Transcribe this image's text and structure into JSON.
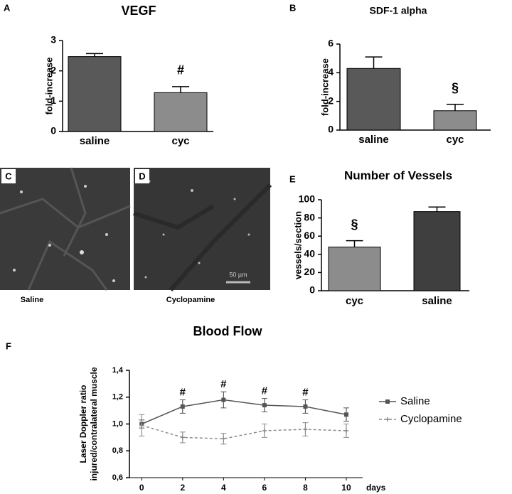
{
  "chart_data": [
    {
      "type": "bar",
      "panel": "A",
      "title": "VEGF",
      "ylabel": "fold-increase",
      "categories": [
        "saline",
        "cyc"
      ],
      "values": [
        2.47,
        1.28
      ],
      "errors": [
        0.1,
        0.2
      ],
      "colors": [
        "#595959",
        "#8c8c8c"
      ],
      "significance": [
        null,
        "#"
      ],
      "ylim": [
        0,
        3
      ],
      "yticks": [
        0,
        1,
        2,
        3
      ]
    },
    {
      "type": "bar",
      "panel": "B",
      "title": "SDF-1 alpha",
      "ylabel": "fold-increase",
      "categories": [
        "saline",
        "cyc"
      ],
      "values": [
        4.3,
        1.35
      ],
      "errors": [
        0.8,
        0.45
      ],
      "colors": [
        "#595959",
        "#8c8c8c"
      ],
      "significance": [
        null,
        "§"
      ],
      "ylim": [
        0,
        6
      ],
      "yticks": [
        0,
        2,
        4,
        6
      ]
    },
    {
      "type": "bar",
      "panel": "E",
      "title": "Number of Vessels",
      "ylabel": "vessels/section",
      "categories": [
        "cyc",
        "saline"
      ],
      "values": [
        48,
        87
      ],
      "errors": [
        7,
        5
      ],
      "colors": [
        "#8c8c8c",
        "#3f3f3f"
      ],
      "significance": [
        "§",
        null
      ],
      "ylim": [
        0,
        100
      ],
      "yticks": [
        0,
        20,
        40,
        60,
        80,
        100
      ]
    },
    {
      "type": "line",
      "panel": "F",
      "title": "Blood Flow",
      "ylabel": [
        "Laser Doppler ratio",
        "injured/contralateral muscle"
      ],
      "xlabel": "days",
      "x": [
        0,
        2,
        4,
        6,
        8,
        10
      ],
      "xlim": [
        -0.6,
        10.8
      ],
      "xticks": [
        0,
        2,
        4,
        6,
        8,
        10
      ],
      "ylim": [
        0.6,
        1.4
      ],
      "yticks": [
        {
          "value": 0.6,
          "label": "0,6"
        },
        {
          "value": 0.8,
          "label": "0,8"
        },
        {
          "value": 1.0,
          "label": "1,0"
        },
        {
          "value": 1.2,
          "label": "1,2"
        },
        {
          "value": 1.4,
          "label": "1,4"
        }
      ],
      "series": [
        {
          "name": "Saline",
          "color": "#555555",
          "dashed": false,
          "values": [
            1.0,
            1.13,
            1.18,
            1.14,
            1.13,
            1.07
          ],
          "errors": [
            0.03,
            0.05,
            0.06,
            0.05,
            0.05,
            0.05
          ]
        },
        {
          "name": "Cyclopamine",
          "color": "#8c8c8c",
          "dashed": true,
          "values": [
            0.99,
            0.9,
            0.89,
            0.95,
            0.96,
            0.95
          ],
          "errors": [
            0.08,
            0.04,
            0.04,
            0.05,
            0.05,
            0.05
          ]
        }
      ],
      "significance": [
        null,
        "#",
        "#",
        "#",
        "#",
        null
      ]
    }
  ],
  "images": [
    {
      "panel": "C",
      "caption": "Saline"
    },
    {
      "panel": "D",
      "caption": "Cyclopamine",
      "scale_bar": "50 µm"
    }
  ]
}
